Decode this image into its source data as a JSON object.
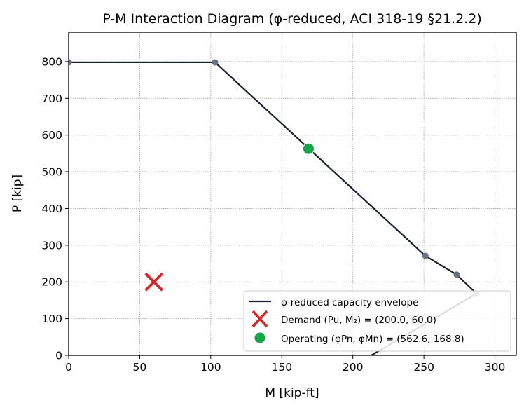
{
  "chart_data": {
    "type": "line",
    "title": "P-M Interaction Diagram (φ-reduced, ACI 318-19 §21.2.2)",
    "xlabel": "M  [kip-ft]",
    "ylabel": "P  [kip]",
    "xlim": [
      0,
      315
    ],
    "ylim": [
      0,
      880
    ],
    "xticks": [
      0,
      50,
      100,
      150,
      200,
      250,
      300
    ],
    "yticks": [
      0,
      100,
      200,
      300,
      400,
      500,
      600,
      700,
      800
    ],
    "grid": true,
    "legend_position": "lower-right",
    "series": [
      {
        "name": "φ-reduced capacity envelope",
        "kind": "line",
        "color": "#1c1f2e",
        "x": [
          0,
          103,
          251,
          273,
          287,
          213
        ],
        "y": [
          798,
          798,
          271,
          220,
          168,
          0
        ]
      },
      {
        "name": "Demand (Pu, M₂) = (200.0, 60.0)",
        "kind": "marker-x",
        "color": "#d62728",
        "x": [
          60.0
        ],
        "y": [
          200.0
        ]
      },
      {
        "name": "Operating (φPn, φMn) = (562.6, 168.8)",
        "kind": "marker-circle",
        "color": "#16a34a",
        "x": [
          168.8
        ],
        "y": [
          562.6
        ]
      }
    ],
    "vertex_markers": {
      "color": "#6b7280",
      "x": [
        0,
        103,
        251,
        273,
        287
      ],
      "y": [
        798,
        798,
        271,
        220,
        168
      ]
    }
  }
}
